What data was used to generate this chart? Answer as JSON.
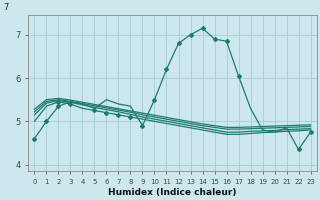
{
  "xlabel": "Humidex (Indice chaleur)",
  "bg_color": "#cce8ec",
  "grid_color": "#aad0d6",
  "line_color": "#1e7b72",
  "x": [
    0,
    1,
    2,
    3,
    4,
    5,
    6,
    7,
    8,
    9,
    10,
    11,
    12,
    13,
    14,
    15,
    16,
    17,
    18,
    19,
    20,
    21,
    22,
    23
  ],
  "lines": [
    [
      4.6,
      5.0,
      5.35,
      5.45,
      5.4,
      5.3,
      5.5,
      5.4,
      5.35,
      4.9,
      5.5,
      6.2,
      6.8,
      7.0,
      7.15,
      6.9,
      6.85,
      6.05,
      5.3,
      4.8,
      4.75,
      4.85,
      4.35,
      4.75
    ],
    [
      5.0,
      5.35,
      5.45,
      5.4,
      5.3,
      5.25,
      5.2,
      5.15,
      5.1,
      5.05,
      5.0,
      4.95,
      4.9,
      4.85,
      4.8,
      4.75,
      4.7,
      4.7,
      4.72,
      4.74,
      4.75,
      4.77,
      4.78,
      4.8
    ],
    [
      5.15,
      5.42,
      5.48,
      5.44,
      5.38,
      5.32,
      5.27,
      5.22,
      5.16,
      5.1,
      5.05,
      5.0,
      4.95,
      4.9,
      4.85,
      4.8,
      4.75,
      4.75,
      4.77,
      4.78,
      4.79,
      4.81,
      4.82,
      4.83
    ],
    [
      5.22,
      5.46,
      5.5,
      5.46,
      5.41,
      5.36,
      5.31,
      5.26,
      5.21,
      5.15,
      5.1,
      5.05,
      5.0,
      4.95,
      4.9,
      4.86,
      4.82,
      4.82,
      4.83,
      4.84,
      4.85,
      4.86,
      4.87,
      4.88
    ],
    [
      5.28,
      5.5,
      5.53,
      5.49,
      5.44,
      5.39,
      5.34,
      5.29,
      5.24,
      5.19,
      5.14,
      5.09,
      5.04,
      4.99,
      4.94,
      4.9,
      4.86,
      4.86,
      4.87,
      4.88,
      4.89,
      4.9,
      4.91,
      4.92
    ]
  ],
  "ylim": [
    3.85,
    7.45
  ],
  "yticks": [
    4,
    5,
    6,
    7
  ],
  "ytop_label": "7",
  "xticks": [
    0,
    1,
    2,
    3,
    4,
    5,
    6,
    7,
    8,
    9,
    10,
    11,
    12,
    13,
    14,
    15,
    16,
    17,
    18,
    19,
    20,
    21,
    22,
    23
  ]
}
